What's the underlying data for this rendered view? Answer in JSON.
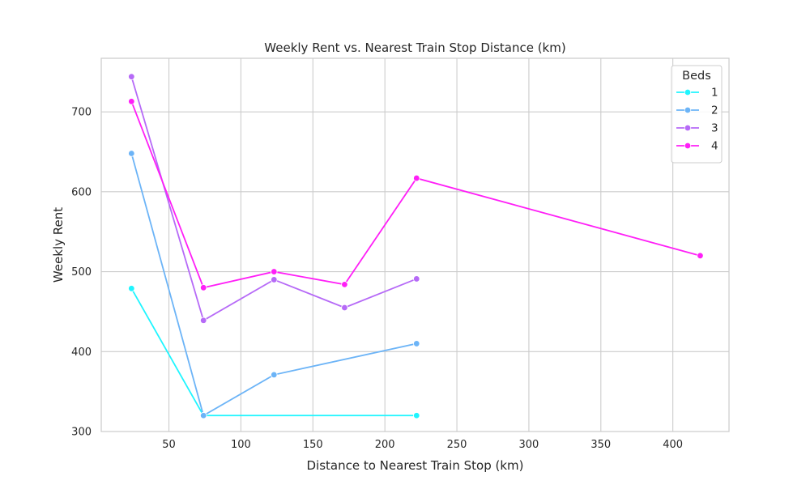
{
  "chart_data": {
    "type": "line",
    "title": "Weekly Rent vs. Nearest Train Stop Distance (km)",
    "xlabel": "Distance to Nearest Train Stop (km)",
    "ylabel": "Weekly Rent",
    "xlim": [
      3,
      439
    ],
    "ylim": [
      300,
      767
    ],
    "xticks": [
      50,
      100,
      150,
      200,
      250,
      300,
      350,
      400
    ],
    "yticks": [
      300,
      400,
      500,
      600,
      700
    ],
    "grid": true,
    "legend": {
      "title": "Beds",
      "placement": "top-right"
    },
    "series": [
      {
        "name": "1",
        "color": "#1ff5ff",
        "points": [
          [
            24,
            479
          ],
          [
            74,
            320
          ],
          [
            222,
            320
          ]
        ]
      },
      {
        "name": "2",
        "color": "#6cb4f7",
        "points": [
          [
            24,
            648
          ],
          [
            74,
            320
          ],
          [
            123,
            371
          ],
          [
            222,
            410
          ]
        ]
      },
      {
        "name": "3",
        "color": "#b66af7",
        "points": [
          [
            24,
            744
          ],
          [
            74,
            439
          ],
          [
            123,
            490
          ],
          [
            172,
            455
          ],
          [
            222,
            491
          ]
        ]
      },
      {
        "name": "4",
        "color": "#ff1ff7",
        "points": [
          [
            24,
            713
          ],
          [
            74,
            480
          ],
          [
            123,
            500
          ],
          [
            172,
            484
          ],
          [
            222,
            617
          ],
          [
            419,
            520
          ]
        ]
      }
    ]
  }
}
